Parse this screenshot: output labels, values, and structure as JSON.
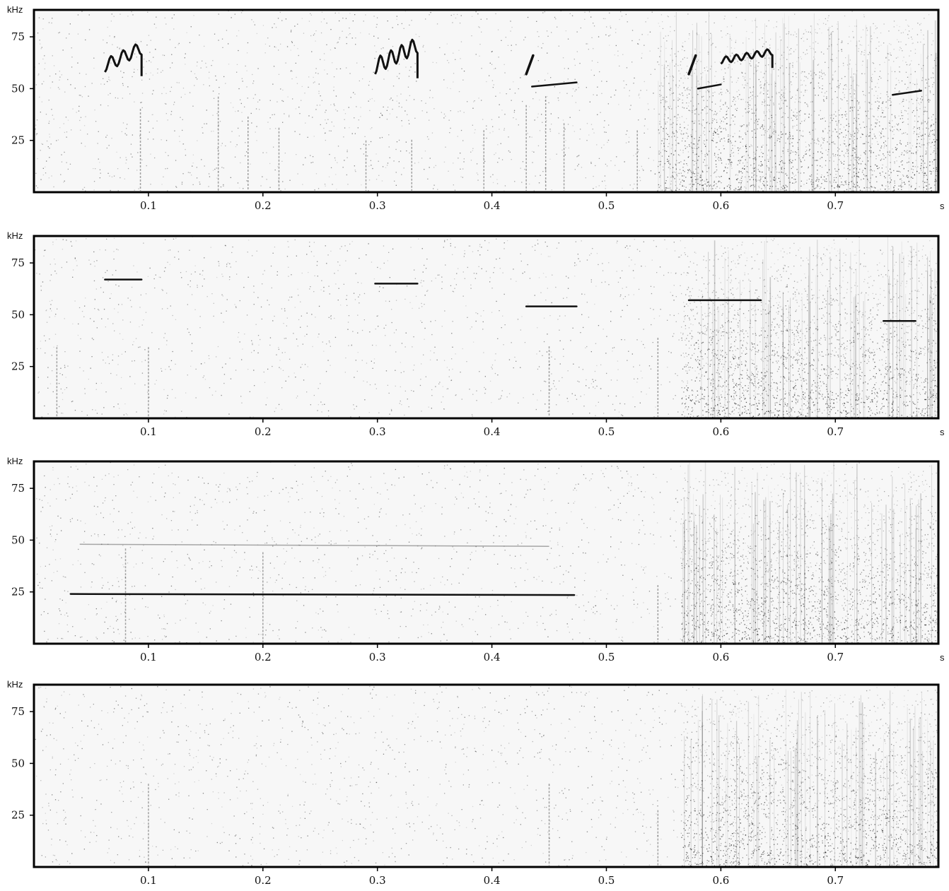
{
  "chart_data": [
    {
      "type": "spectrogram",
      "panel_index": 1,
      "ylabel": "kHz",
      "xlabel": "s",
      "xlim": [
        0,
        0.79
      ],
      "ylim": [
        0,
        88
      ],
      "x_ticks": [
        "0.1",
        "0.2",
        "0.3",
        "0.4",
        "0.5",
        "0.6",
        "0.7"
      ],
      "y_ticks": [
        "75",
        "50",
        "25"
      ],
      "grid": false,
      "noise_regions": [
        {
          "x_start": 0.545,
          "x_end": 0.79,
          "intensity": 0.55
        },
        {
          "x_start": 0.0,
          "x_end": 0.545,
          "intensity": 0.12
        }
      ],
      "calls": [
        {
          "shape": "zigzag",
          "x_start": 0.062,
          "x_end": 0.094,
          "y_low": 58,
          "y_high": 72,
          "peaks": 3
        },
        {
          "shape": "zigzag",
          "x_start": 0.298,
          "x_end": 0.335,
          "y_low": 57,
          "y_high": 74,
          "peaks": 4
        },
        {
          "shape": "fm_line",
          "x_start": 0.43,
          "x_end": 0.436,
          "y_start": 57,
          "y_end": 66
        },
        {
          "shape": "cf_line",
          "x_start": 0.435,
          "x_end": 0.474,
          "y_start": 51,
          "y_end": 53
        },
        {
          "shape": "fm_line",
          "x_start": 0.572,
          "x_end": 0.578,
          "y_start": 57,
          "y_end": 66
        },
        {
          "shape": "cf_line",
          "x_start": 0.58,
          "x_end": 0.6,
          "y_start": 50,
          "y_end": 52
        },
        {
          "shape": "zigzag",
          "x_start": 0.6,
          "x_end": 0.645,
          "y_low": 62,
          "y_high": 69,
          "peaks": 5
        },
        {
          "shape": "cf_line",
          "x_start": 0.75,
          "x_end": 0.775,
          "y_start": 47,
          "y_end": 49
        }
      ],
      "transients": [
        0.093,
        0.161,
        0.187,
        0.214,
        0.29,
        0.33,
        0.393,
        0.43,
        0.447,
        0.463,
        0.527
      ]
    },
    {
      "type": "spectrogram",
      "panel_index": 2,
      "ylabel": "kHz",
      "xlabel": "s",
      "xlim": [
        0,
        0.79
      ],
      "ylim": [
        0,
        88
      ],
      "x_ticks": [
        "0.1",
        "0.2",
        "0.3",
        "0.4",
        "0.5",
        "0.6",
        "0.7"
      ],
      "y_ticks": [
        "75",
        "50",
        "25"
      ],
      "grid": false,
      "noise_regions": [
        {
          "x_start": 0.565,
          "x_end": 0.79,
          "intensity": 0.6
        },
        {
          "x_start": 0.0,
          "x_end": 0.565,
          "intensity": 0.1
        }
      ],
      "calls": [
        {
          "shape": "cf_line",
          "x_start": 0.062,
          "x_end": 0.094,
          "y_start": 67,
          "y_end": 67
        },
        {
          "shape": "cf_line",
          "x_start": 0.298,
          "x_end": 0.335,
          "y_start": 65,
          "y_end": 65
        },
        {
          "shape": "cf_line",
          "x_start": 0.43,
          "x_end": 0.474,
          "y_start": 54,
          "y_end": 54
        },
        {
          "shape": "cf_line",
          "x_start": 0.572,
          "x_end": 0.635,
          "y_start": 57,
          "y_end": 57
        },
        {
          "shape": "cf_line",
          "x_start": 0.742,
          "x_end": 0.77,
          "y_start": 47,
          "y_end": 47
        }
      ],
      "transients": [
        0.02,
        0.1,
        0.45,
        0.545
      ]
    },
    {
      "type": "spectrogram",
      "panel_index": 3,
      "ylabel": "kHz",
      "xlabel": "s",
      "xlim": [
        0,
        0.79
      ],
      "ylim": [
        0,
        88
      ],
      "x_ticks": [
        "0.1",
        "0.2",
        "0.3",
        "0.4",
        "0.5",
        "0.6",
        "0.7"
      ],
      "y_ticks": [
        "75",
        "50",
        "25"
      ],
      "grid": false,
      "noise_regions": [
        {
          "x_start": 0.565,
          "x_end": 0.79,
          "intensity": 0.6
        },
        {
          "x_start": 0.0,
          "x_end": 0.565,
          "intensity": 0.1
        }
      ],
      "calls": [
        {
          "shape": "cf_line",
          "x_start": 0.032,
          "x_end": 0.472,
          "y_start": 24,
          "y_end": 23.5
        },
        {
          "shape": "faint_line",
          "x_start": 0.04,
          "x_end": 0.45,
          "y_start": 48,
          "y_end": 47
        }
      ],
      "transients": [
        0.08,
        0.2,
        0.545
      ]
    },
    {
      "type": "spectrogram",
      "panel_index": 4,
      "ylabel": "kHz",
      "xlabel": "",
      "xlim": [
        0,
        0.79
      ],
      "ylim": [
        0,
        88
      ],
      "x_ticks": [
        "0.1",
        "0.2",
        "0.3",
        "0.4",
        "0.5",
        "0.6",
        "0.7"
      ],
      "y_ticks": [
        "75",
        "50",
        "25"
      ],
      "grid": false,
      "noise_regions": [
        {
          "x_start": 0.565,
          "x_end": 0.79,
          "intensity": 0.6
        },
        {
          "x_start": 0.0,
          "x_end": 0.565,
          "intensity": 0.1
        }
      ],
      "calls": [],
      "transients": [
        0.1,
        0.45,
        0.545
      ]
    }
  ]
}
